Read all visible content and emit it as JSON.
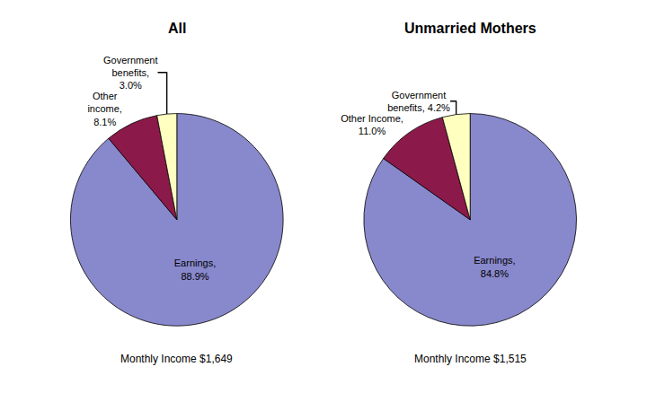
{
  "chart_data": [
    {
      "type": "pie",
      "title": "All",
      "categories": [
        "Earnings",
        "Other income",
        "Government benefits"
      ],
      "values": [
        88.9,
        8.1,
        3.0
      ],
      "value_labels": [
        "Earnings,\n88.9%",
        "Other\nincome,\n8.1%",
        "Government\nbenefits,\n3.0%"
      ],
      "colors": [
        "#8888cc",
        "#8b1a4a",
        "#ffffc0"
      ],
      "data_labels": true,
      "annotations": [
        "Monthly Income $1,649"
      ]
    },
    {
      "type": "pie",
      "title": "Unmarried Mothers",
      "categories": [
        "Earnings",
        "Other Income",
        "Government benefits"
      ],
      "values": [
        84.8,
        11.0,
        4.2
      ],
      "value_labels": [
        "Earnings,\n84.8%",
        "Other Income,\n11.0%",
        "Government\nbenefits, 4.2%"
      ],
      "colors": [
        "#8888cc",
        "#8b1a4a",
        "#ffffc0"
      ],
      "data_labels": true,
      "annotations": [
        "Monthly Income $1,515"
      ]
    }
  ]
}
